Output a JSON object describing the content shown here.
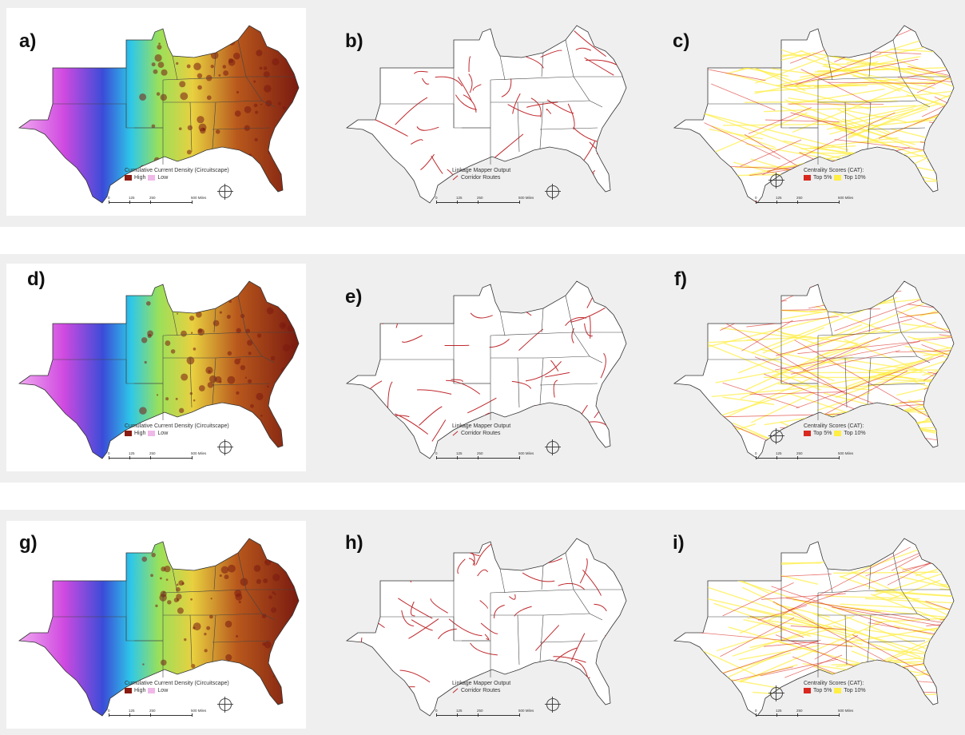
{
  "panels": [
    {
      "label": "a)",
      "type": "circuitscape"
    },
    {
      "label": "b)",
      "type": "linkage"
    },
    {
      "label": "c)",
      "type": "centrality"
    },
    {
      "label": "d)",
      "type": "circuitscape"
    },
    {
      "label": "e)",
      "type": "linkage"
    },
    {
      "label": "f)",
      "type": "centrality"
    },
    {
      "label": "g)",
      "type": "circuitscape"
    },
    {
      "label": "h)",
      "type": "linkage"
    },
    {
      "label": "i)",
      "type": "centrality"
    }
  ],
  "legends": {
    "circuitscape": {
      "title": "Cumulative Current Density (Circuitscape)",
      "high": "High",
      "low": "Low",
      "high_color": "#8b1a10",
      "low_color": "#f0b8e8"
    },
    "linkage": {
      "title": "Linkage Mapper Output",
      "item": "Corridor Routes",
      "route_color": "#c0282d"
    },
    "centrality": {
      "title": "Centrality Scores (CAT):",
      "top5": "Top 5%",
      "top10": "Top 10%",
      "top5_color": "#d9281f",
      "top10_color": "#ffee44"
    }
  },
  "scale_bar": {
    "ticks": [
      "0",
      "125",
      "250",
      "500 Miles"
    ]
  },
  "compass_icon": "north-arrow-compass-icon"
}
